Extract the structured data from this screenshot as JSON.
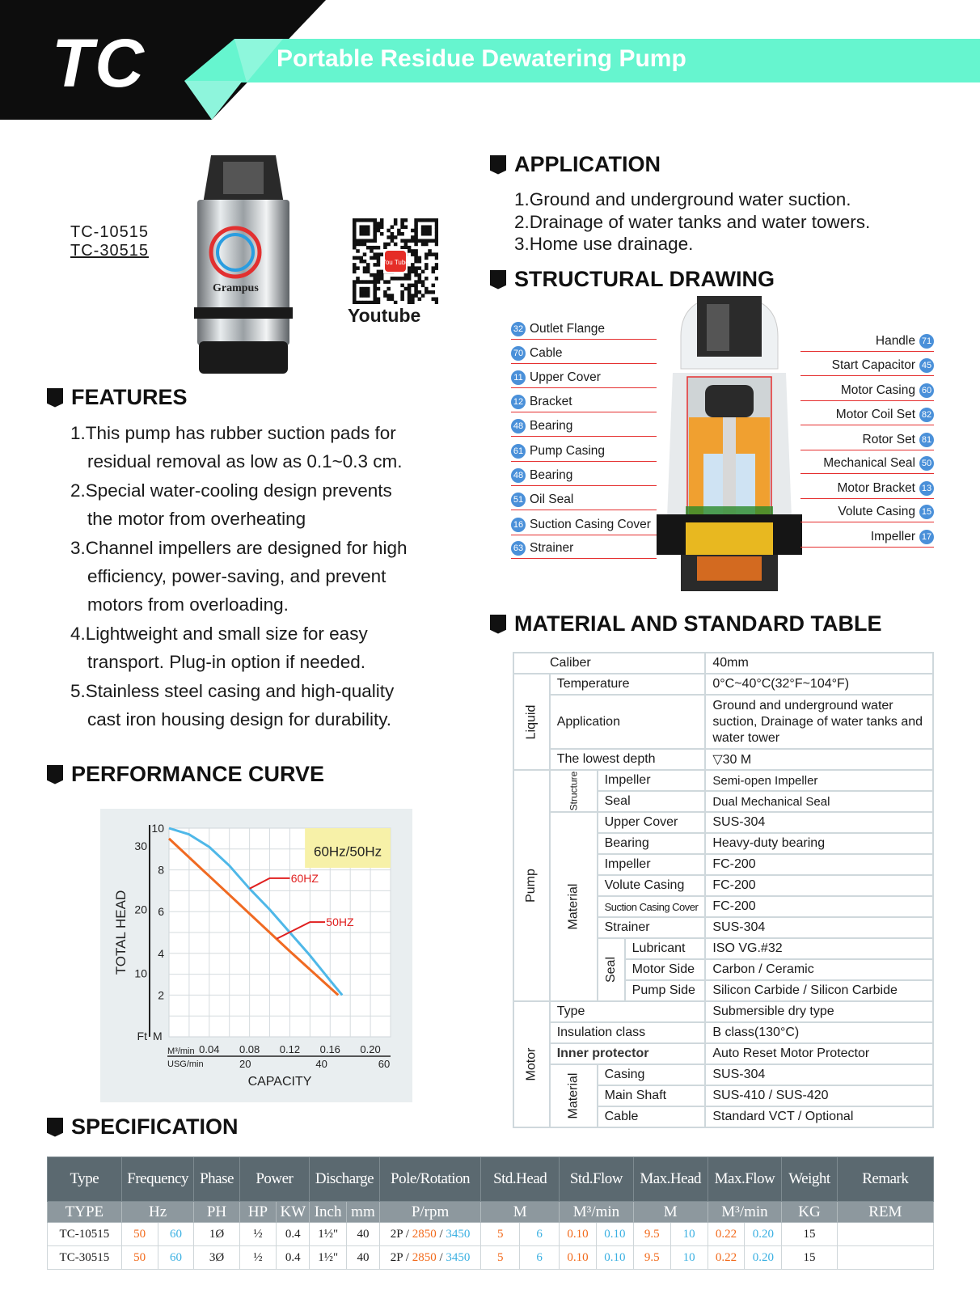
{
  "header": {
    "logo": "TC",
    "title": "Portable Residue Dewatering Pump",
    "accent": "#66f5cf"
  },
  "product": {
    "models": [
      "TC-10515",
      "TC-30515"
    ],
    "brand_logo": "Grampus",
    "qr_label": "Youtube",
    "qr_badge": "You Tube"
  },
  "application": {
    "heading": "APPLICATION",
    "items": [
      "1.Ground and underground water suction.",
      "2.Drainage of water tanks and water towers.",
      "3.Home use drainage."
    ]
  },
  "structural": {
    "heading": "STRUCTURAL DRAWING",
    "left": [
      {
        "n": "32",
        "label": "Outlet Flange"
      },
      {
        "n": "70",
        "label": "Cable"
      },
      {
        "n": "11",
        "label": "Upper Cover"
      },
      {
        "n": "12",
        "label": "Bracket"
      },
      {
        "n": "48",
        "label": "Bearing"
      },
      {
        "n": "61",
        "label": "Pump Casing"
      },
      {
        "n": "48",
        "label": "Bearing"
      },
      {
        "n": "51",
        "label": "Oil Seal"
      },
      {
        "n": "16",
        "label": "Suction Casing Cover"
      },
      {
        "n": "63",
        "label": "Strainer"
      }
    ],
    "right": [
      {
        "n": "71",
        "label": "Handle"
      },
      {
        "n": "45",
        "label": "Start Capacitor"
      },
      {
        "n": "60",
        "label": "Motor Casing"
      },
      {
        "n": "82",
        "label": "Motor Coil Set"
      },
      {
        "n": "81",
        "label": "Rotor Set"
      },
      {
        "n": "50",
        "label": "Mechanical Seal"
      },
      {
        "n": "13",
        "label": "Motor Bracket"
      },
      {
        "n": "15",
        "label": "Volute Casing"
      },
      {
        "n": "17",
        "label": "Impeller"
      }
    ]
  },
  "features": {
    "heading": "FEATURES",
    "items": [
      [
        "1.This pump has rubber suction pads for",
        "residual removal as low as 0.1~0.3 cm."
      ],
      [
        "2.Special water-cooling design prevents",
        "the motor from overheating"
      ],
      [
        "3.Channel impellers are designed for high",
        "efficiency, power-saving, and prevent",
        "motors from overloading."
      ],
      [
        "4.Lightweight and small size for easy",
        "transport. Plug-in option if needed."
      ],
      [
        "5.Stainless steel casing and high-quality",
        "cast iron housing design for durability."
      ]
    ]
  },
  "performance": {
    "heading": "PERFORMANCE CURVE"
  },
  "chart_data": {
    "type": "line",
    "legend_box": "60Hz/50Hz",
    "ylabel": "TOTAL HEAD",
    "xlabel": "CAPACITY",
    "x_unit": "M³/min",
    "x_unit2": "USG/min",
    "y_unit": "M",
    "y_unit2": "Ft",
    "xlim": [
      0,
      0.22
    ],
    "ylim": [
      0,
      10
    ],
    "grid": true,
    "x_ticks": [
      "0.04",
      "0.08",
      "0.12",
      "0.16",
      "0.20"
    ],
    "x_tick_values": [
      0.04,
      0.08,
      0.12,
      0.16,
      0.2
    ],
    "x2_ticks": [
      "20",
      "40",
      "60"
    ],
    "x2_tick_values": [
      20,
      40,
      60
    ],
    "y_ticks": [
      "2",
      "4",
      "6",
      "8",
      "10"
    ],
    "y_tick_values": [
      2,
      4,
      6,
      8,
      10
    ],
    "y2_ticks": [
      "10",
      "20",
      "30"
    ],
    "y2_tick_values": [
      10,
      20,
      30
    ],
    "series": [
      {
        "name": "60HZ",
        "color": "#4fb8e8",
        "x": [
          0,
          0.02,
          0.04,
          0.06,
          0.08,
          0.1,
          0.12,
          0.14,
          0.16,
          0.172
        ],
        "y": [
          10,
          9.7,
          9.1,
          8.2,
          7.1,
          6.1,
          5.0,
          3.9,
          2.7,
          2.0
        ]
      },
      {
        "name": "50HZ",
        "color": "#f06a22",
        "x": [
          0,
          0.04,
          0.08,
          0.12,
          0.168
        ],
        "y": [
          9.5,
          7.7,
          5.9,
          4.1,
          2.0
        ]
      }
    ],
    "label_color": "#e02020"
  },
  "material": {
    "heading": "MATERIAL AND STANDARD TABLE",
    "groups": {
      "liquid": "Liquid",
      "pump": "Pump",
      "motor": "Motor",
      "structure": "Structure",
      "material": "Material",
      "seal": "Seal"
    },
    "rows": [
      [
        "Caliber",
        "40mm"
      ],
      [
        "Temperature",
        "0°C~40°C(32°F~104°F)"
      ],
      [
        "Application",
        "Ground and underground water suction, Drainage of water tanks and water tower"
      ],
      [
        "The lowest depth",
        "▽30 M"
      ],
      [
        "Impeller",
        "Semi-open Impeller"
      ],
      [
        "Seal",
        "Dual Mechanical Seal"
      ],
      [
        "Upper Cover",
        "SUS-304"
      ],
      [
        "Bearing",
        "Heavy-duty bearing"
      ],
      [
        "Impeller",
        "FC-200"
      ],
      [
        "Volute Casing",
        "FC-200"
      ],
      [
        "Suction Casing Cover",
        "FC-200"
      ],
      [
        "Strainer",
        "SUS-304"
      ],
      [
        "Lubricant",
        "ISO VG.#32"
      ],
      [
        "Motor Side",
        "Carbon / Ceramic"
      ],
      [
        "Pump Side",
        "Silicon Carbide / Silicon Carbide"
      ],
      [
        "Type",
        "Submersible dry type"
      ],
      [
        "Insulation class",
        "B class(130°C)"
      ],
      [
        "Inner protector",
        "Auto Reset Motor Protector"
      ],
      [
        "Casing",
        "SUS-304"
      ],
      [
        "Main Shaft",
        "SUS-410 / SUS-420"
      ],
      [
        "Cable",
        "Standard  VCT / Optional"
      ]
    ]
  },
  "specification": {
    "heading": "SPECIFICATION",
    "headers": [
      [
        "Type",
        1
      ],
      [
        "Frequency",
        2
      ],
      [
        "Phase",
        1
      ],
      [
        "Power",
        2
      ],
      [
        "Discharge",
        2
      ],
      [
        "Pole/Rotation",
        1
      ],
      [
        "Std.Head",
        2
      ],
      [
        "Std.Flow",
        2
      ],
      [
        "Max.Head",
        2
      ],
      [
        "Max.Flow",
        2
      ],
      [
        "Weight",
        1
      ],
      [
        "Remark",
        1
      ]
    ],
    "units": [
      [
        "TYPE",
        1
      ],
      [
        "Hz",
        2
      ],
      [
        "PH",
        1
      ],
      [
        "HP",
        1
      ],
      [
        "KW",
        1
      ],
      [
        "Inch",
        1
      ],
      [
        "mm",
        1
      ],
      [
        "P/rpm",
        1
      ],
      [
        "M",
        2
      ],
      [
        "M³/min",
        2
      ],
      [
        "M",
        2
      ],
      [
        "M³/min",
        2
      ],
      [
        "KG",
        1
      ],
      [
        "REM",
        1
      ]
    ],
    "rows": [
      {
        "type": "TC-10515",
        "hz50": "50",
        "hz60": "60",
        "ph": "1Ø",
        "hp": "½",
        "kw": "0.4",
        "inch": "1½\"",
        "mm": "40",
        "pole": "2P",
        "rpm50": "2850",
        "rpm60": "3450",
        "sh50": "5",
        "sh60": "6",
        "sf50": "0.10",
        "sf60": "0.10",
        "mh50": "9.5",
        "mh60": "10",
        "mf50": "0.22",
        "mf60": "0.20",
        "kg": "15",
        "rem": ""
      },
      {
        "type": "TC-30515",
        "hz50": "50",
        "hz60": "60",
        "ph": "3Ø",
        "hp": "½",
        "kw": "0.4",
        "inch": "1½\"",
        "mm": "40",
        "pole": "2P",
        "rpm50": "2850",
        "rpm60": "3450",
        "sh50": "5",
        "sh60": "6",
        "sf50": "0.10",
        "sf60": "0.10",
        "mh50": "9.5",
        "mh60": "10",
        "mf50": "0.22",
        "mf60": "0.20",
        "kg": "15",
        "rem": ""
      }
    ]
  }
}
